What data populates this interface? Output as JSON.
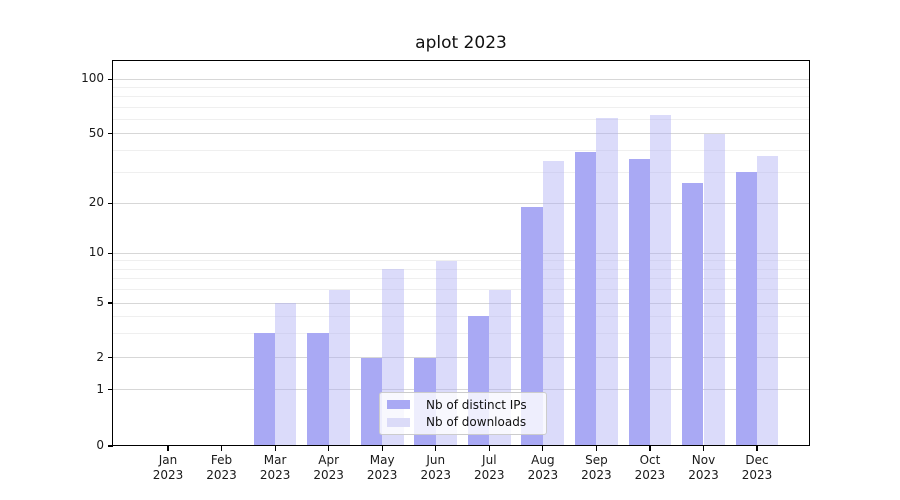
{
  "title": "aplot 2023",
  "legend": {
    "items": [
      {
        "label": "Nb of distinct IPs",
        "color": "#a9a9f4"
      },
      {
        "label": "Nb of downloads",
        "color": "#dbdbf8"
      }
    ]
  },
  "colors": {
    "bar_dark": "#a9a9f4",
    "bar_light": "rgba(169,169,244,0.42)",
    "grid_major": "#d7d7d7",
    "grid_minor": "#efefef",
    "axis": "#000000",
    "background": "#ffffff"
  },
  "chart_data": {
    "type": "bar",
    "title": "aplot 2023",
    "categories": [
      "Jan 2023",
      "Feb 2023",
      "Mar 2023",
      "Apr 2023",
      "May 2023",
      "Jun 2023",
      "Jul 2023",
      "Aug 2023",
      "Sep 2023",
      "Oct 2023",
      "Nov 2023",
      "Dec 2023"
    ],
    "series": [
      {
        "name": "Nb of distinct IPs",
        "values": [
          0,
          0,
          3,
          3,
          2,
          2,
          4,
          19,
          39,
          36,
          26,
          30
        ]
      },
      {
        "name": "Nb of downloads",
        "values": [
          0,
          0,
          5,
          6,
          8,
          9,
          6,
          35,
          61,
          63,
          50,
          37
        ]
      }
    ],
    "xlabel": "",
    "ylabel": "",
    "yscale": "symlog",
    "major_yticks": [
      0,
      1,
      2,
      5,
      10,
      20,
      50,
      100
    ],
    "minor_yticks": [
      3,
      4,
      6,
      7,
      8,
      9,
      30,
      40,
      60,
      70,
      80,
      90
    ],
    "ylim": [
      0,
      126
    ],
    "grid": "both",
    "legend_position": "lower center"
  }
}
